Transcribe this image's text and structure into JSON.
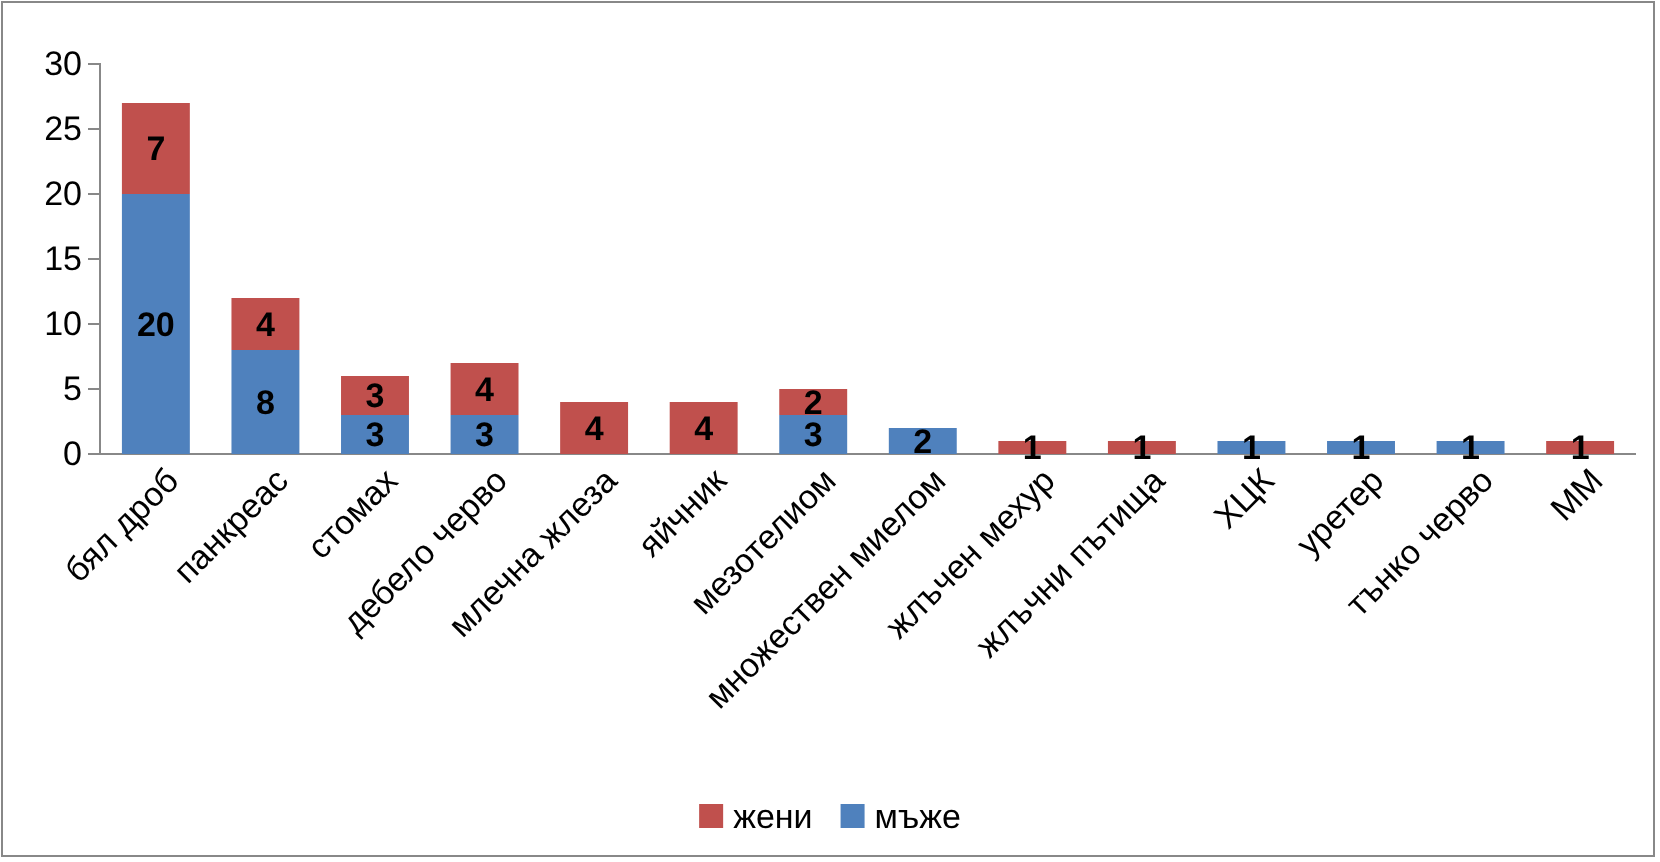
{
  "chart_data": {
    "type": "bar",
    "stacked": true,
    "legend": "bottom",
    "grid": false,
    "categories": [
      "бял дроб",
      "панкреас",
      "стомах",
      "дебело черво",
      "млечна жлеза",
      "яйчник",
      "мезотелиом",
      "множествен миелом",
      "жлъчен мехур",
      "жлъчни пътища",
      "ХЦК",
      "уретер",
      "тънко черво",
      "ММ"
    ],
    "ylim": [
      0,
      30
    ],
    "yticks": [
      0,
      5,
      10,
      15,
      20,
      25,
      30
    ],
    "series": [
      {
        "name": "мъже",
        "color": "#4f81bd",
        "values": [
          20,
          8,
          3,
          3,
          0,
          0,
          3,
          2,
          0,
          0,
          1,
          1,
          1,
          0
        ],
        "value_labels": [
          "20",
          "8",
          "3",
          "3",
          null,
          null,
          "3",
          "2",
          null,
          null,
          "1",
          "1",
          "1",
          null
        ]
      },
      {
        "name": "жени",
        "color": "#c0504d",
        "values": [
          7,
          4,
          3,
          4,
          4,
          4,
          2,
          0,
          1,
          1,
          0,
          0,
          0,
          1
        ],
        "value_labels": [
          "7",
          "4",
          "3",
          "4",
          "4",
          "4",
          "2",
          null,
          "1",
          "1",
          null,
          null,
          null,
          "1"
        ]
      }
    ]
  }
}
